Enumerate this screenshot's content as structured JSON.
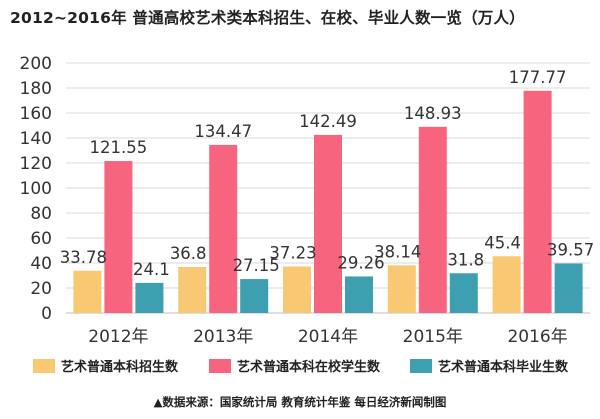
{
  "title": "2012~2016年 普通高校艺术类本科招生、在校、毕业人数一览（万人）",
  "source": "▲数据来源：国家统计局 教育统计年鉴 每日经济新闻制图",
  "chart_data": {
    "type": "bar",
    "categories": [
      "2012年",
      "2013年",
      "2014年",
      "2015年",
      "2016年"
    ],
    "ylim": [
      0,
      200
    ],
    "yticks": [
      0,
      20,
      40,
      60,
      80,
      100,
      120,
      140,
      160,
      180,
      200
    ],
    "grid": true,
    "legend_position": "bottom",
    "series": [
      {
        "name": "艺术普通本科招生数",
        "color": "#F9C873",
        "values": [
          33.78,
          36.8,
          37.23,
          38.14,
          45.4
        ],
        "labels": [
          "33.78",
          "36.8",
          "37.23",
          "38.14",
          "45.4"
        ]
      },
      {
        "name": "艺术普通本科在校学生数",
        "color": "#F7647D",
        "values": [
          121.55,
          134.47,
          142.49,
          148.93,
          177.77
        ],
        "labels": [
          "121.55",
          "134.47",
          "142.49",
          "148.93",
          "177.77"
        ]
      },
      {
        "name": "艺术普通本科毕业生数",
        "color": "#3E9FB0",
        "values": [
          24.1,
          27.15,
          29.26,
          31.8,
          39.57
        ],
        "labels": [
          "24.1",
          "27.15",
          "29.26",
          "31.8",
          "39.57"
        ]
      }
    ]
  }
}
